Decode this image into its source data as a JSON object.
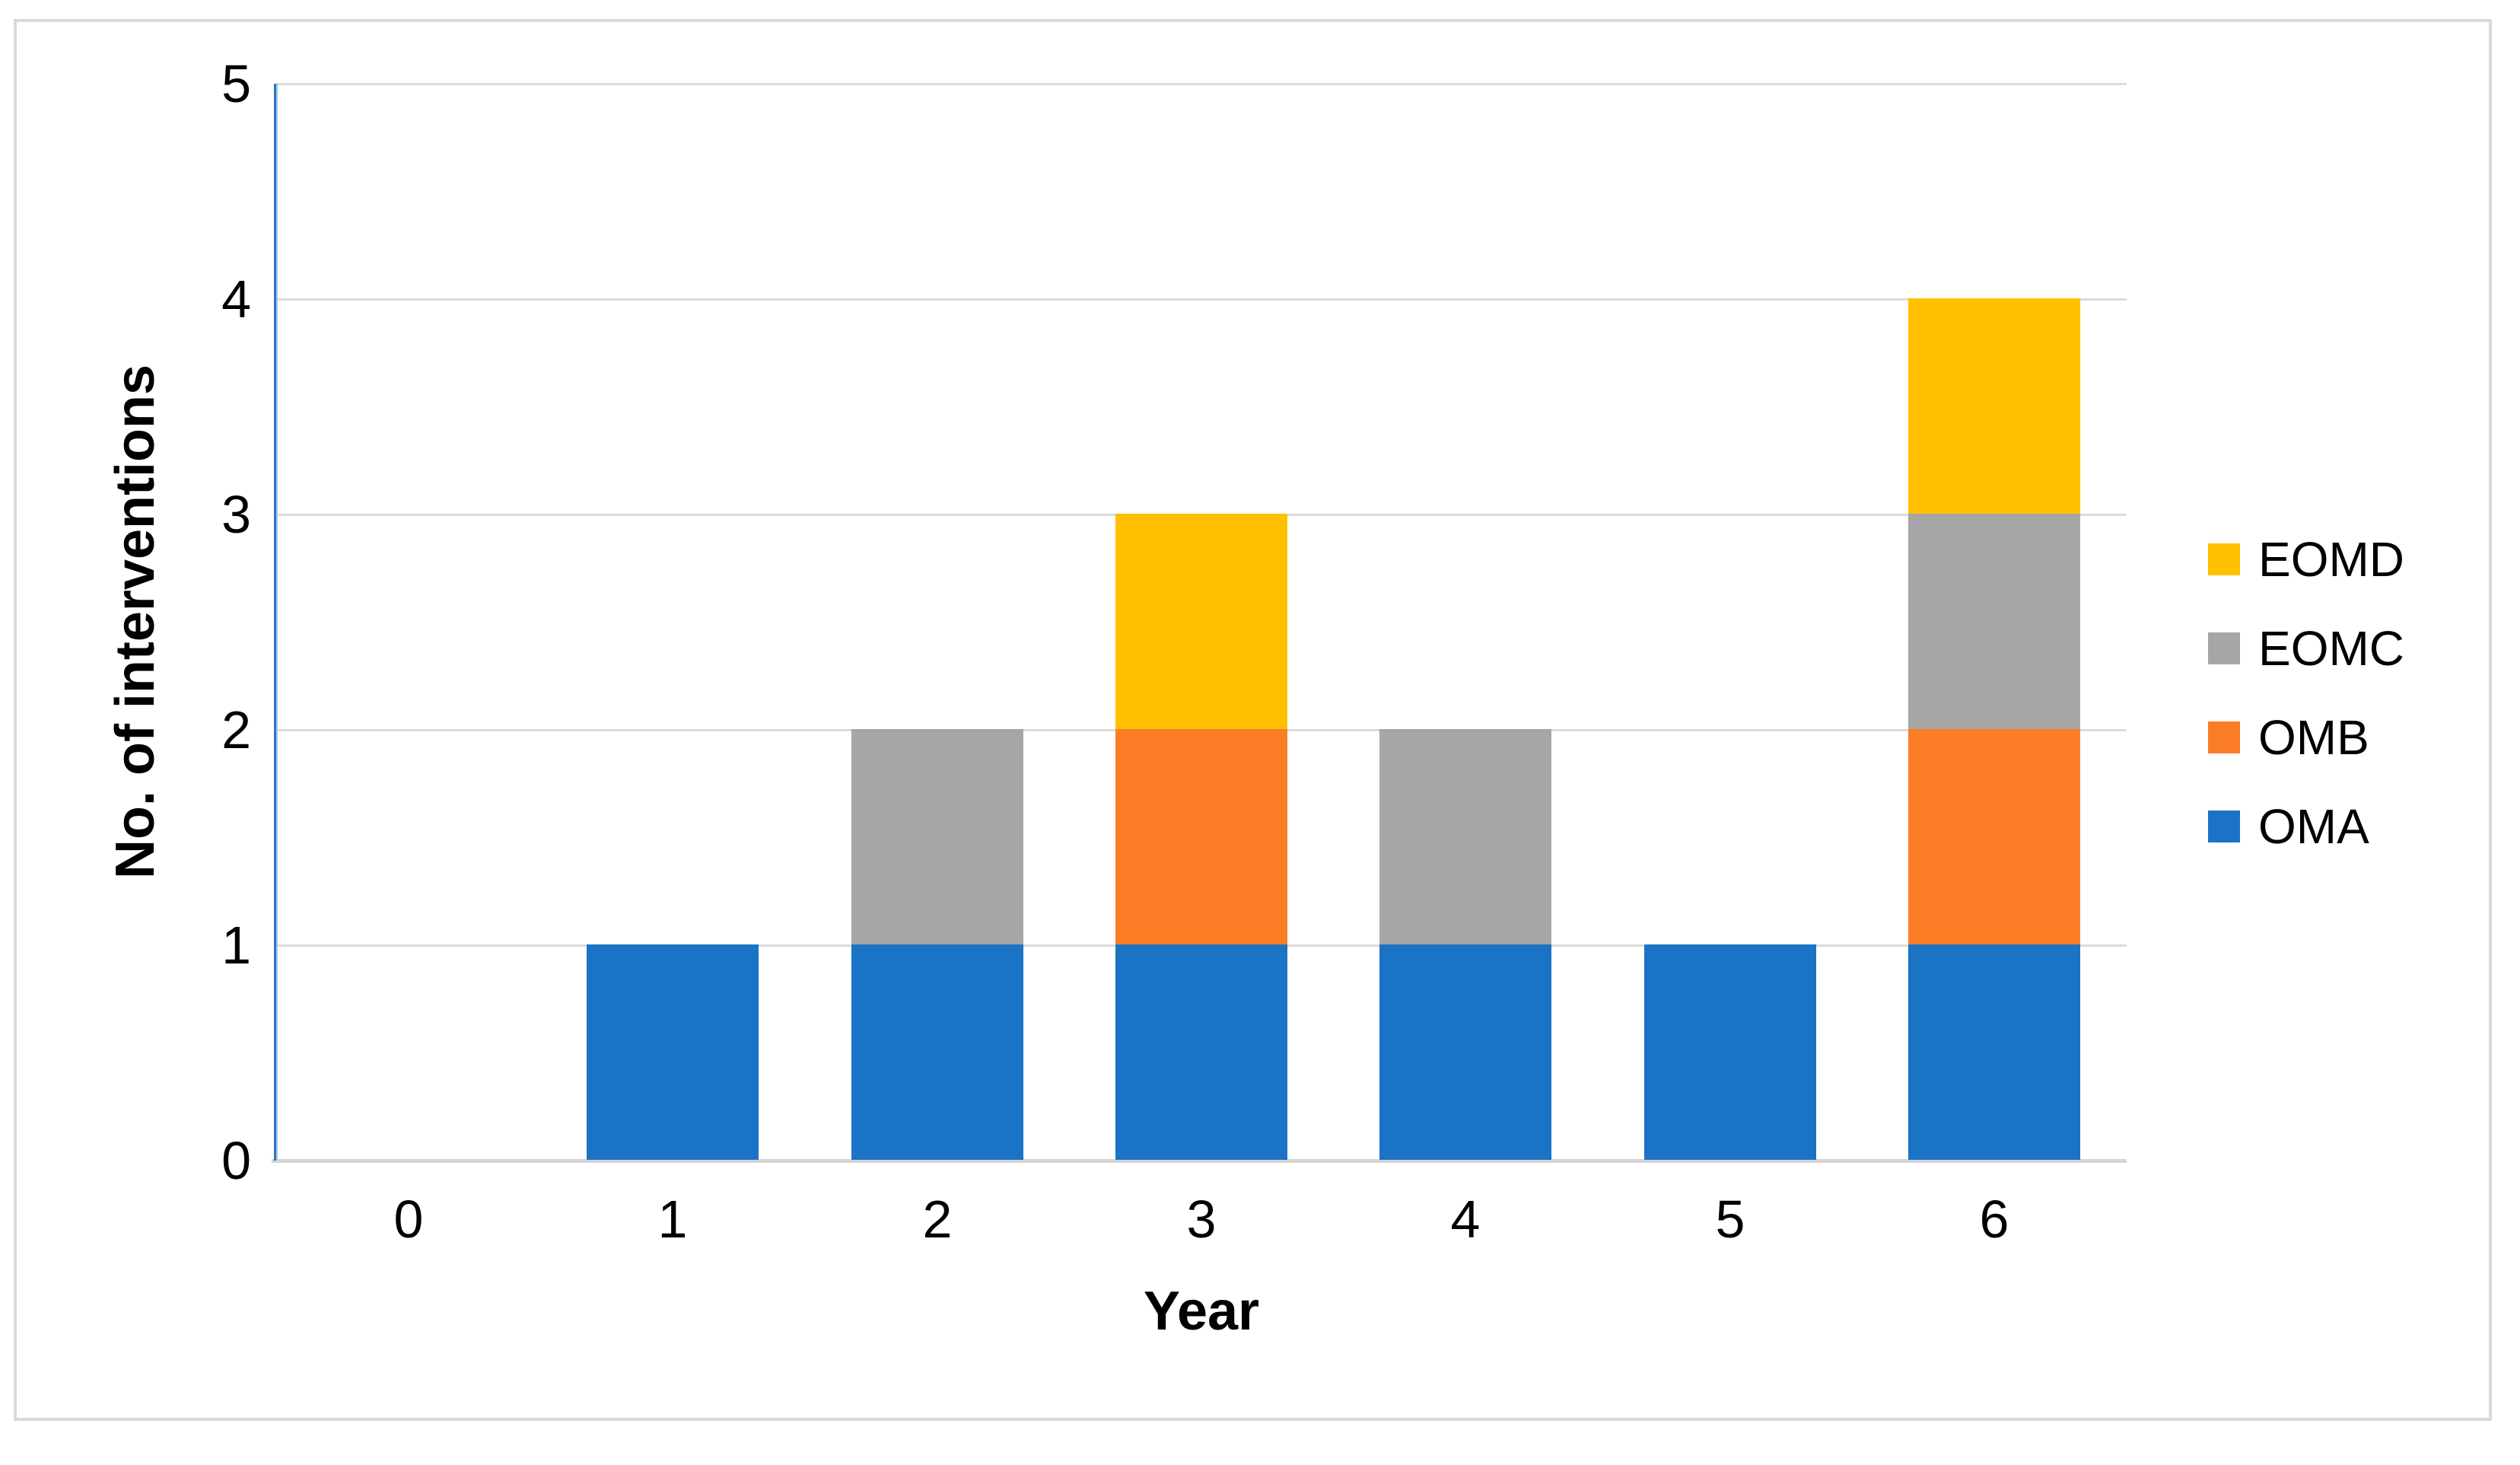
{
  "figure": {
    "background": "#FFFFFF",
    "border_color": "#D9D9D9"
  },
  "chart_data": {
    "type": "bar",
    "stacked": true,
    "categories": [
      "0",
      "1",
      "2",
      "3",
      "4",
      "5",
      "6"
    ],
    "series": [
      {
        "name": "OMA",
        "color": "#1B73C6",
        "values": [
          0,
          1,
          1,
          1,
          1,
          1,
          1
        ]
      },
      {
        "name": "OMB",
        "color": "#FB7D26",
        "values": [
          0,
          0,
          0,
          1,
          0,
          0,
          1
        ]
      },
      {
        "name": "EOMC",
        "color": "#A6A6A6",
        "values": [
          0,
          0,
          1,
          0,
          1,
          0,
          1
        ]
      },
      {
        "name": "EOMD",
        "color": "#FFC000",
        "values": [
          0,
          0,
          0,
          1,
          0,
          0,
          1
        ]
      }
    ],
    "totals_by_category": [
      0,
      1,
      2,
      3,
      2,
      1,
      4
    ],
    "xlabel": "Year",
    "ylabel": "No. of interventions",
    "ylim": [
      0,
      5
    ],
    "yticks": [
      "0",
      "1",
      "2",
      "3",
      "4",
      "5"
    ],
    "grid": "horizontal",
    "legend_position": "right",
    "legend_order": [
      "EOMD",
      "EOMC",
      "OMB",
      "OMA"
    ],
    "axis_colors": {
      "y_axis_line": "#2E74C0",
      "gridline": "#DBDBDB",
      "x_axis_line": "#D5D3D3"
    }
  }
}
